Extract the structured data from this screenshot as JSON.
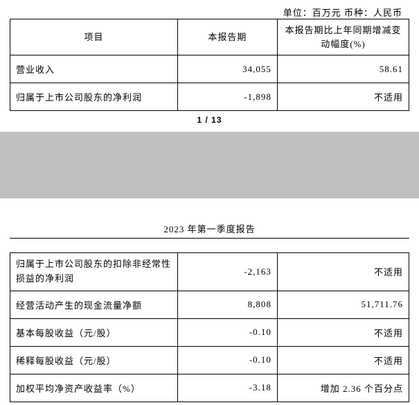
{
  "unit_line": "单位：百万元  币种：人民币",
  "header": {
    "item": "项目",
    "period": "本报告期",
    "change": "本报告期比上年同期增减变动幅度(%)"
  },
  "table1_rows": [
    {
      "label": "营业收入",
      "period": "34,055",
      "change": "58.61"
    },
    {
      "label": "归属于上市公司股东的净利润",
      "period": "-1,898",
      "change": "不适用"
    }
  ],
  "page_num": "1 / 13",
  "report_title": "2023 年第一季度报告",
  "table2_rows": [
    {
      "label": "归属于上市公司股东的扣除非经常性损益的净利润",
      "period": "-2,163",
      "change": "不适用",
      "multi": true
    },
    {
      "label": "经营活动产生的现金流量净额",
      "period": "8,808",
      "change": "51,711.76"
    },
    {
      "label": "基本每股收益（元/股）",
      "period": "-0.10",
      "change": "不适用"
    },
    {
      "label": "稀释每股收益（元/股）",
      "period": "-0.10",
      "change": "不适用"
    },
    {
      "label": "加权平均净资产收益率（%）",
      "period": "-3.18",
      "change": "增加 2.36 个百分点"
    }
  ]
}
